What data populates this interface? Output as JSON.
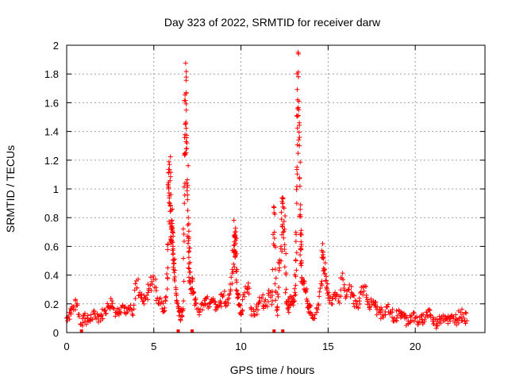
{
  "chart_data": {
    "type": "scatter",
    "title": "Day 323 of 2022, SRMTID for receiver darw",
    "xlabel": "GPS time / hours",
    "ylabel": "SRMTID / TECUs",
    "xlim": [
      0,
      24
    ],
    "ylim": [
      0,
      2
    ],
    "x_ticks": [
      "0",
      "5",
      "10",
      "15",
      "20"
    ],
    "y_ticks": [
      "0",
      "0.2",
      "0.4",
      "0.6",
      "0.8",
      "1",
      "1.2",
      "1.4",
      "1.6",
      "1.8",
      "2"
    ],
    "x_tick_values": [
      0,
      5,
      10,
      15,
      20
    ],
    "y_tick_values": [
      0,
      0.2,
      0.4,
      0.6,
      0.8,
      1,
      1.2,
      1.4,
      1.6,
      1.8,
      2
    ],
    "grid": true,
    "marker": "+",
    "series": [
      {
        "name": "SRMTID",
        "color": "#ff0000",
        "x": [
          0.0,
          0.2,
          0.4,
          0.6,
          0.8,
          1.0,
          1.2,
          1.4,
          1.6,
          1.8,
          2.0,
          2.2,
          2.4,
          2.6,
          2.8,
          3.0,
          3.2,
          3.4,
          3.6,
          3.8,
          4.0,
          4.2,
          4.4,
          4.6,
          4.8,
          5.0,
          5.2,
          5.4,
          5.6,
          5.7,
          5.8,
          5.85,
          5.9,
          5.95,
          6.0,
          6.05,
          6.1,
          6.15,
          6.2,
          6.3,
          6.4,
          6.5,
          6.6,
          6.7,
          6.75,
          6.8,
          6.85,
          6.9,
          6.95,
          7.0,
          7.05,
          7.1,
          7.2,
          7.3,
          7.4,
          7.6,
          7.8,
          8.0,
          8.2,
          8.4,
          8.6,
          8.8,
          9.0,
          9.2,
          9.4,
          9.5,
          9.6,
          9.65,
          9.7,
          9.75,
          9.8,
          9.9,
          10.0,
          10.2,
          10.4,
          10.6,
          10.8,
          11.0,
          11.2,
          11.4,
          11.6,
          11.8,
          11.9,
          12.0,
          12.1,
          12.2,
          12.3,
          12.4,
          12.5,
          12.6,
          12.7,
          12.8,
          12.9,
          13.0,
          13.1,
          13.15,
          13.2,
          13.25,
          13.3,
          13.35,
          13.4,
          13.45,
          13.5,
          13.6,
          13.7,
          13.8,
          13.9,
          14.0,
          14.2,
          14.4,
          14.6,
          14.7,
          14.8,
          14.9,
          15.0,
          15.2,
          15.4,
          15.6,
          15.8,
          16.0,
          16.2,
          16.4,
          16.6,
          16.8,
          17.0,
          17.2,
          17.4,
          17.6,
          17.8,
          18.0,
          18.2,
          18.4,
          18.6,
          18.8,
          19.0,
          19.2,
          19.4,
          19.6,
          19.8,
          20.0,
          20.2,
          20.4,
          20.6,
          20.8,
          21.0,
          21.2,
          21.4,
          21.6,
          21.8,
          22.0,
          22.2,
          22.4,
          22.6,
          22.8
        ],
        "y": [
          0.1,
          0.14,
          0.18,
          0.2,
          0.06,
          0.12,
          0.08,
          0.1,
          0.13,
          0.11,
          0.12,
          0.15,
          0.18,
          0.22,
          0.14,
          0.16,
          0.19,
          0.13,
          0.17,
          0.12,
          0.36,
          0.28,
          0.22,
          0.26,
          0.33,
          0.37,
          0.24,
          0.2,
          0.15,
          0.25,
          0.45,
          1.0,
          1.17,
          0.88,
          0.72,
          0.76,
          0.6,
          0.48,
          0.36,
          0.26,
          0.18,
          0.14,
          0.12,
          0.22,
          0.9,
          1.45,
          1.67,
          1.32,
          0.85,
          0.56,
          0.42,
          0.3,
          0.38,
          0.28,
          0.2,
          0.14,
          0.2,
          0.24,
          0.18,
          0.22,
          0.16,
          0.21,
          0.26,
          0.19,
          0.3,
          0.44,
          0.56,
          0.7,
          0.62,
          0.35,
          0.24,
          0.19,
          0.14,
          0.25,
          0.32,
          0.16,
          0.12,
          0.2,
          0.24,
          0.18,
          0.26,
          0.22,
          0.87,
          0.28,
          0.12,
          0.48,
          0.6,
          0.9,
          0.72,
          0.2,
          0.16,
          0.24,
          0.2,
          0.22,
          0.28,
          0.5,
          0.9,
          1.62,
          1.94,
          1.46,
          0.82,
          0.58,
          0.38,
          0.36,
          0.3,
          0.22,
          0.18,
          0.14,
          0.1,
          0.16,
          0.34,
          0.56,
          0.44,
          0.36,
          0.26,
          0.2,
          0.28,
          0.22,
          0.38,
          0.24,
          0.3,
          0.26,
          0.18,
          0.22,
          0.32,
          0.26,
          0.18,
          0.22,
          0.16,
          0.14,
          0.12,
          0.18,
          0.14,
          0.1,
          0.12,
          0.14,
          0.1,
          0.08,
          0.12,
          0.1,
          0.07,
          0.09,
          0.11,
          0.16,
          0.08,
          0.06,
          0.09,
          0.12,
          0.1,
          0.08,
          0.11,
          0.09,
          0.14,
          0.1
        ]
      }
    ],
    "gap_markers_x": [
      0.85,
      6.4,
      7.2,
      11.9,
      12.4
    ]
  }
}
